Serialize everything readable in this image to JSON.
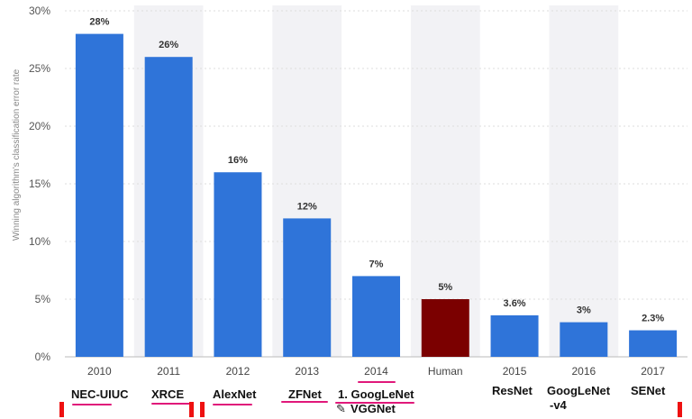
{
  "chart_data": {
    "type": "bar",
    "title": "",
    "xlabel": "",
    "ylabel": "Winning algorithm's classification error rate",
    "categories": [
      "2010",
      "2011",
      "2012",
      "2013",
      "2014",
      "Human",
      "2015",
      "2016",
      "2017"
    ],
    "values": [
      28,
      26,
      16,
      12,
      7,
      5,
      3.6,
      3,
      2.3
    ],
    "value_labels": [
      "28%",
      "26%",
      "16%",
      "12%",
      "7%",
      "5%",
      "3.6%",
      "3%",
      "2.3%"
    ],
    "yticks": [
      "0%",
      "5%",
      "10%",
      "15%",
      "20%",
      "25%",
      "30%"
    ],
    "ylim": [
      0,
      30
    ],
    "grid": true,
    "colors": {
      "bar": "#2f74d9",
      "highlight": "#7b0000",
      "highlight_category": "Human",
      "alt_band": "#f2f2f5"
    }
  },
  "annotations": [
    {
      "text": "NEC-UIUC"
    },
    {
      "text": "XRCE"
    },
    {
      "text": "AlexNet"
    },
    {
      "text": "ZFNet"
    },
    {
      "text": "1. GoogLeNet"
    },
    {
      "text": "VGGNet"
    },
    {
      "text": "ResNet"
    },
    {
      "text": "GoogLeNet"
    },
    {
      "text": "-v4"
    },
    {
      "text": "SENet"
    }
  ],
  "icons": {
    "cursor": "pencil-cursor-icon",
    "markers": "red-marker"
  }
}
